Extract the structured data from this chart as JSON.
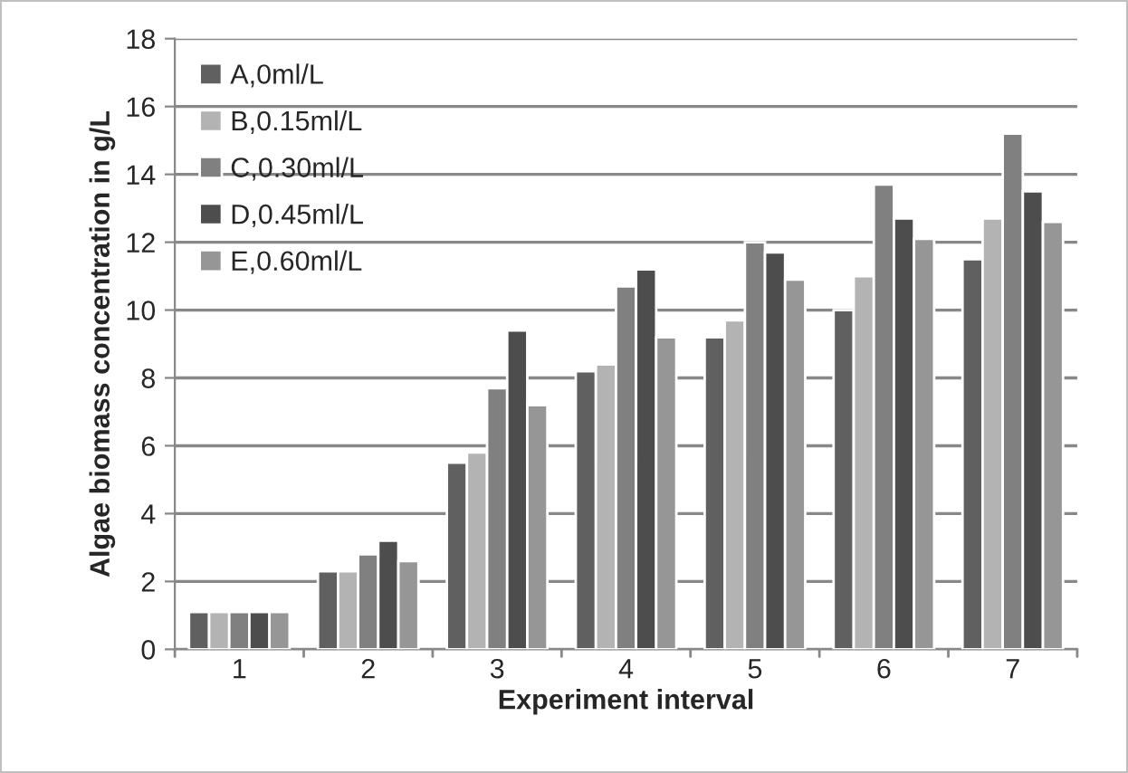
{
  "chart_data": {
    "type": "bar",
    "xlabel": "Experiment interval",
    "ylabel": "Algae biomass concentration in g/L",
    "categories": [
      "1",
      "2",
      "3",
      "4",
      "5",
      "6",
      "7"
    ],
    "series": [
      {
        "name": "A,0ml/L",
        "color": "#606060",
        "values": [
          1.1,
          2.3,
          5.5,
          8.2,
          9.2,
          10.0,
          11.5
        ]
      },
      {
        "name": "B,0.15ml/L",
        "color": "#b3b3b3",
        "values": [
          1.1,
          2.3,
          5.8,
          8.4,
          9.7,
          11.0,
          12.7
        ]
      },
      {
        "name": "C,0.30ml/L",
        "color": "#808080",
        "values": [
          1.1,
          2.8,
          7.7,
          10.7,
          12.0,
          13.7,
          15.2
        ]
      },
      {
        "name": "D,0.45ml/L",
        "color": "#4d4d4d",
        "values": [
          1.1,
          3.2,
          9.4,
          11.2,
          11.7,
          12.7,
          13.5
        ]
      },
      {
        "name": "E,0.60ml/L",
        "color": "#969696",
        "values": [
          1.1,
          2.6,
          7.2,
          9.2,
          10.9,
          12.1,
          12.6
        ]
      }
    ],
    "ylim": [
      0,
      18
    ],
    "yticks": [
      0,
      2,
      4,
      6,
      8,
      10,
      12,
      14,
      16,
      18
    ],
    "grid": "y",
    "legend": "top left"
  }
}
